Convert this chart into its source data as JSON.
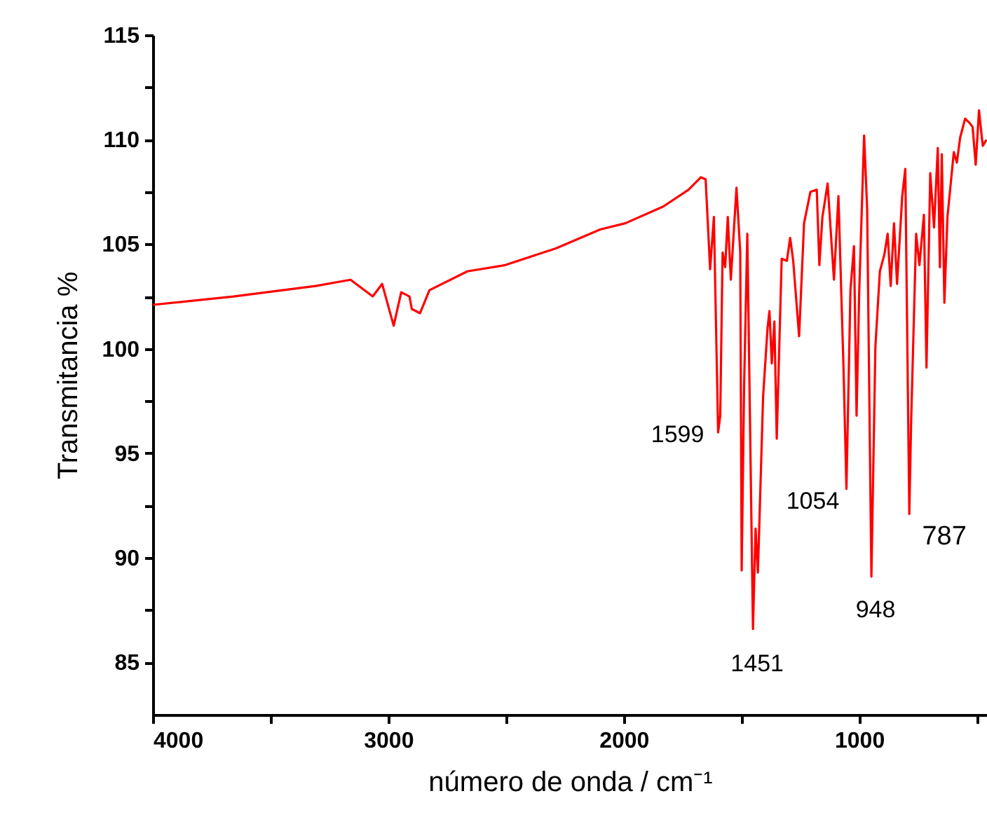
{
  "chart_data": {
    "type": "line",
    "xlabel": "número de onda / cm⁻¹",
    "ylabel": "Transmitancia %",
    "xlim": [
      4000,
      457
    ],
    "ylim": [
      82.5,
      115
    ],
    "xticks": [
      4000,
      {
        "value": 3500,
        "label": null
      },
      3000,
      {
        "value": 2500,
        "label": null
      },
      2000,
      {
        "value": 1500,
        "label": null
      },
      1000,
      {
        "value": 500,
        "label": null
      }
    ],
    "yticks": [
      85,
      {
        "value": 87.5,
        "label": null
      },
      90,
      {
        "value": 92.5,
        "label": null
      },
      95,
      {
        "value": 97.5,
        "label": null
      },
      100,
      {
        "value": 102.5,
        "label": null
      },
      105,
      {
        "value": 107.5,
        "label": null
      },
      110,
      {
        "value": 112.5,
        "label": null
      },
      115
    ],
    "grid": false,
    "marker": "none",
    "line_style": "solid",
    "series": [
      {
        "color": "#ff0000",
        "x": [
          4000,
          3657,
          3308,
          3160,
          3066,
          3026,
          2977,
          2945,
          2910,
          2900,
          2865,
          2825,
          2664,
          2503,
          2288,
          2100,
          1993,
          1832,
          1725,
          1672,
          1652,
          1633,
          1617,
          1599,
          1590,
          1580,
          1569,
          1558,
          1545,
          1521,
          1505,
          1499,
          1489,
          1475,
          1451,
          1440,
          1430,
          1408,
          1389,
          1381,
          1371,
          1360,
          1350,
          1329,
          1307,
          1293,
          1280,
          1255,
          1234,
          1207,
          1180,
          1169,
          1156,
          1134,
          1107,
          1088,
          1066,
          1054,
          1037,
          1022,
          1011,
          1000,
          979,
          966,
          948,
          931,
          912,
          893,
          879,
          866,
          852,
          839,
          817,
          804,
          787,
          779,
          758,
          744,
          725,
          714,
          698,
          682,
          666,
          657,
          649,
          638,
          625,
          611,
          598,
          585,
          571,
          550,
          531,
          518,
          505,
          491,
          475,
          459
        ],
        "values": [
          102.1,
          102.5,
          103.0,
          103.3,
          102.5,
          103.1,
          101.1,
          102.7,
          102.5,
          101.9,
          101.7,
          102.8,
          103.7,
          104.0,
          104.8,
          105.7,
          106.0,
          106.8,
          107.6,
          108.2,
          108.1,
          103.8,
          106.3,
          96.0,
          96.8,
          104.6,
          103.9,
          106.3,
          103.3,
          107.7,
          104.6,
          89.4,
          98.0,
          105.5,
          86.6,
          91.4,
          89.3,
          97.7,
          101.0,
          101.8,
          99.3,
          101.3,
          95.7,
          104.3,
          104.2,
          105.3,
          104.2,
          100.6,
          106.0,
          107.5,
          107.6,
          104.0,
          106.3,
          107.9,
          103.3,
          107.3,
          98.9,
          93.3,
          102.8,
          104.9,
          96.8,
          102.6,
          110.2,
          106.7,
          89.1,
          100.1,
          103.7,
          104.5,
          105.5,
          103.0,
          106.0,
          103.1,
          107.3,
          108.6,
          92.1,
          96.6,
          105.5,
          104.0,
          106.4,
          99.1,
          108.4,
          105.8,
          109.6,
          103.9,
          109.3,
          102.2,
          106.3,
          107.9,
          109.4,
          108.9,
          110.1,
          111.0,
          110.8,
          110.6,
          108.8,
          111.4,
          109.7,
          110.0
        ]
      }
    ],
    "annotations": [
      {
        "text": "1599",
        "x": 1599,
        "y": 96.0
      },
      {
        "text": "1451",
        "x": 1451,
        "y": 86.6
      },
      {
        "text": "1054",
        "x": 1054,
        "y": 93.3
      },
      {
        "text": "948",
        "x": 948,
        "y": 89.1
      },
      {
        "text": "787",
        "x": 787,
        "y": 92.1
      }
    ]
  }
}
